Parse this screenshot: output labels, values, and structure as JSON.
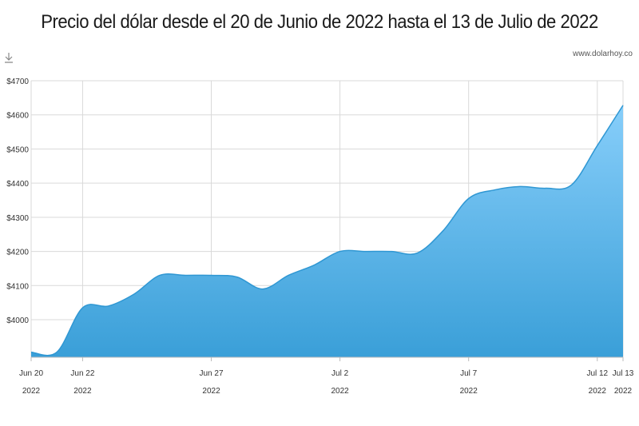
{
  "header": {
    "title": "Precio del dólar desde el 20 de Junio de 2022 hasta el 13 de Julio de 2022",
    "source": "www.dolarhoy.co",
    "download_icon": "download-icon"
  },
  "chart_data": {
    "type": "area",
    "title": "Precio del dólar desde el 20 de Junio de 2022 hasta el 13 de Julio de 2022",
    "xlabel": "",
    "ylabel": "",
    "x": [
      "2022-06-20",
      "2022-06-21",
      "2022-06-22",
      "2022-06-23",
      "2022-06-24",
      "2022-06-25",
      "2022-06-26",
      "2022-06-27",
      "2022-06-28",
      "2022-06-29",
      "2022-06-30",
      "2022-07-01",
      "2022-07-02",
      "2022-07-03",
      "2022-07-04",
      "2022-07-05",
      "2022-07-06",
      "2022-07-07",
      "2022-07-08",
      "2022-07-09",
      "2022-07-10",
      "2022-07-11",
      "2022-07-12",
      "2022-07-13"
    ],
    "values": [
      3905,
      3905,
      4035,
      4040,
      4075,
      4130,
      4130,
      4130,
      4125,
      4090,
      4130,
      4160,
      4200,
      4200,
      4200,
      4195,
      4260,
      4355,
      4380,
      4390,
      4385,
      4395,
      4510,
      4628
    ],
    "ylim": [
      3890,
      4700
    ],
    "y_ticks": [
      "$4000",
      "$4100",
      "$4200",
      "$4300",
      "$4400",
      "$4500",
      "$4600",
      "$4700"
    ],
    "y_tick_values": [
      4000,
      4100,
      4200,
      4300,
      4400,
      4500,
      4600,
      4700
    ],
    "x_ticks": [
      {
        "date": "2022-06-20",
        "label": "Jun 20",
        "year": "2022"
      },
      {
        "date": "2022-06-22",
        "label": "Jun 22",
        "year": "2022"
      },
      {
        "date": "2022-06-27",
        "label": "Jun 27",
        "year": "2022"
      },
      {
        "date": "2022-07-02",
        "label": "Jul 2",
        "year": "2022"
      },
      {
        "date": "2022-07-07",
        "label": "Jul 7",
        "year": "2022"
      },
      {
        "date": "2022-07-12",
        "label": "Jul 12",
        "year": "2022"
      },
      {
        "date": "2022-07-13",
        "label": "Jul 13",
        "year": "2022"
      }
    ],
    "grid": true,
    "colors": {
      "fill_top": "#87cefa",
      "fill_bottom": "#3a9fd8",
      "line": "#2f97d3",
      "grid": "#d9d9d9"
    }
  }
}
